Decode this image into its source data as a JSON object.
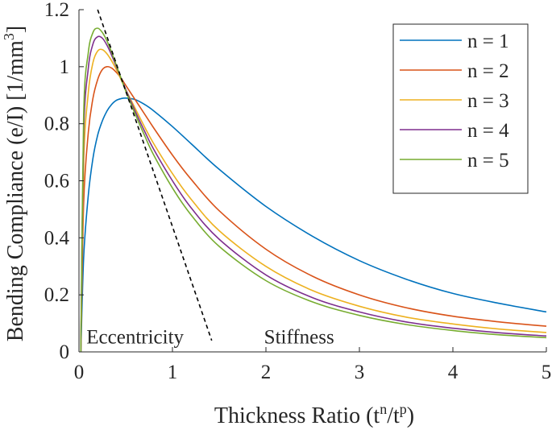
{
  "chart_data": {
    "type": "line",
    "xlabel": "Thickness Ratio (t",
    "xlabel_sup1": "n",
    "xlabel_mid": "/t",
    "xlabel_sup2": "p",
    "xlabel_end": ")",
    "ylabel": "Bending Compliance (e/I) [1/mm",
    "ylabel_sup": "3",
    "ylabel_end": "]",
    "xlim": [
      0,
      5
    ],
    "ylim": [
      0,
      1.2
    ],
    "x_ticks": [
      0,
      1,
      2,
      3,
      4,
      5
    ],
    "x_tick_labels": [
      "0",
      "1",
      "2",
      "3",
      "4",
      "5"
    ],
    "y_ticks": [
      0,
      0.2,
      0.4,
      0.6,
      0.8,
      1.0,
      1.2
    ],
    "y_tick_labels": [
      "0",
      "0.2",
      "0.4",
      "0.6",
      "0.8",
      "1",
      "1.2"
    ],
    "grid": false,
    "legend_position": "top-right",
    "annotations": [
      "Eccentricity",
      "Stiffness"
    ],
    "x": [
      0.02,
      0.05,
      0.1,
      0.15,
      0.2,
      0.25,
      0.3,
      0.35,
      0.4,
      0.45,
      0.5,
      0.6,
      0.7,
      0.8,
      1.0,
      1.2,
      1.5,
      2.0,
      2.5,
      3.0,
      3.5,
      4.0,
      4.5,
      5.0
    ],
    "series": [
      {
        "name": "n = 1",
        "color": "#0072BD",
        "values": [
          0.0,
          0.33,
          0.55,
          0.68,
          0.76,
          0.81,
          0.845,
          0.868,
          0.882,
          0.888,
          0.89,
          0.885,
          0.868,
          0.845,
          0.79,
          0.73,
          0.64,
          0.51,
          0.405,
          0.32,
          0.255,
          0.205,
          0.17,
          0.14
        ]
      },
      {
        "name": "n = 2",
        "color": "#D95319",
        "values": [
          0.0,
          0.52,
          0.77,
          0.89,
          0.955,
          0.99,
          1.0,
          0.995,
          0.98,
          0.96,
          0.935,
          0.885,
          0.835,
          0.785,
          0.69,
          0.605,
          0.495,
          0.36,
          0.265,
          0.2,
          0.155,
          0.125,
          0.105,
          0.09
        ]
      },
      {
        "name": "n = 3",
        "color": "#EDB120",
        "values": [
          0.0,
          0.66,
          0.91,
          1.015,
          1.055,
          1.06,
          1.045,
          1.02,
          0.99,
          0.955,
          0.92,
          0.855,
          0.79,
          0.73,
          0.625,
          0.535,
          0.425,
          0.3,
          0.215,
          0.16,
          0.122,
          0.098,
          0.08,
          0.068
        ]
      },
      {
        "name": "n = 4",
        "color": "#7E2F8E",
        "values": [
          0.0,
          0.76,
          0.995,
          1.08,
          1.105,
          1.1,
          1.075,
          1.04,
          1.0,
          0.96,
          0.92,
          0.845,
          0.775,
          0.71,
          0.6,
          0.505,
          0.395,
          0.27,
          0.19,
          0.14,
          0.105,
          0.083,
          0.067,
          0.056
        ]
      },
      {
        "name": "n = 5",
        "color": "#77AC30",
        "values": [
          0.0,
          0.83,
          1.05,
          1.12,
          1.135,
          1.12,
          1.09,
          1.05,
          1.005,
          0.96,
          0.915,
          0.835,
          0.76,
          0.69,
          0.575,
          0.48,
          0.37,
          0.25,
          0.175,
          0.128,
          0.096,
          0.075,
          0.06,
          0.05
        ]
      }
    ],
    "boundary_line": {
      "style": "dashed",
      "color": "#000000",
      "x": [
        0.2,
        1.42
      ],
      "y": [
        1.2,
        0.04
      ]
    }
  }
}
